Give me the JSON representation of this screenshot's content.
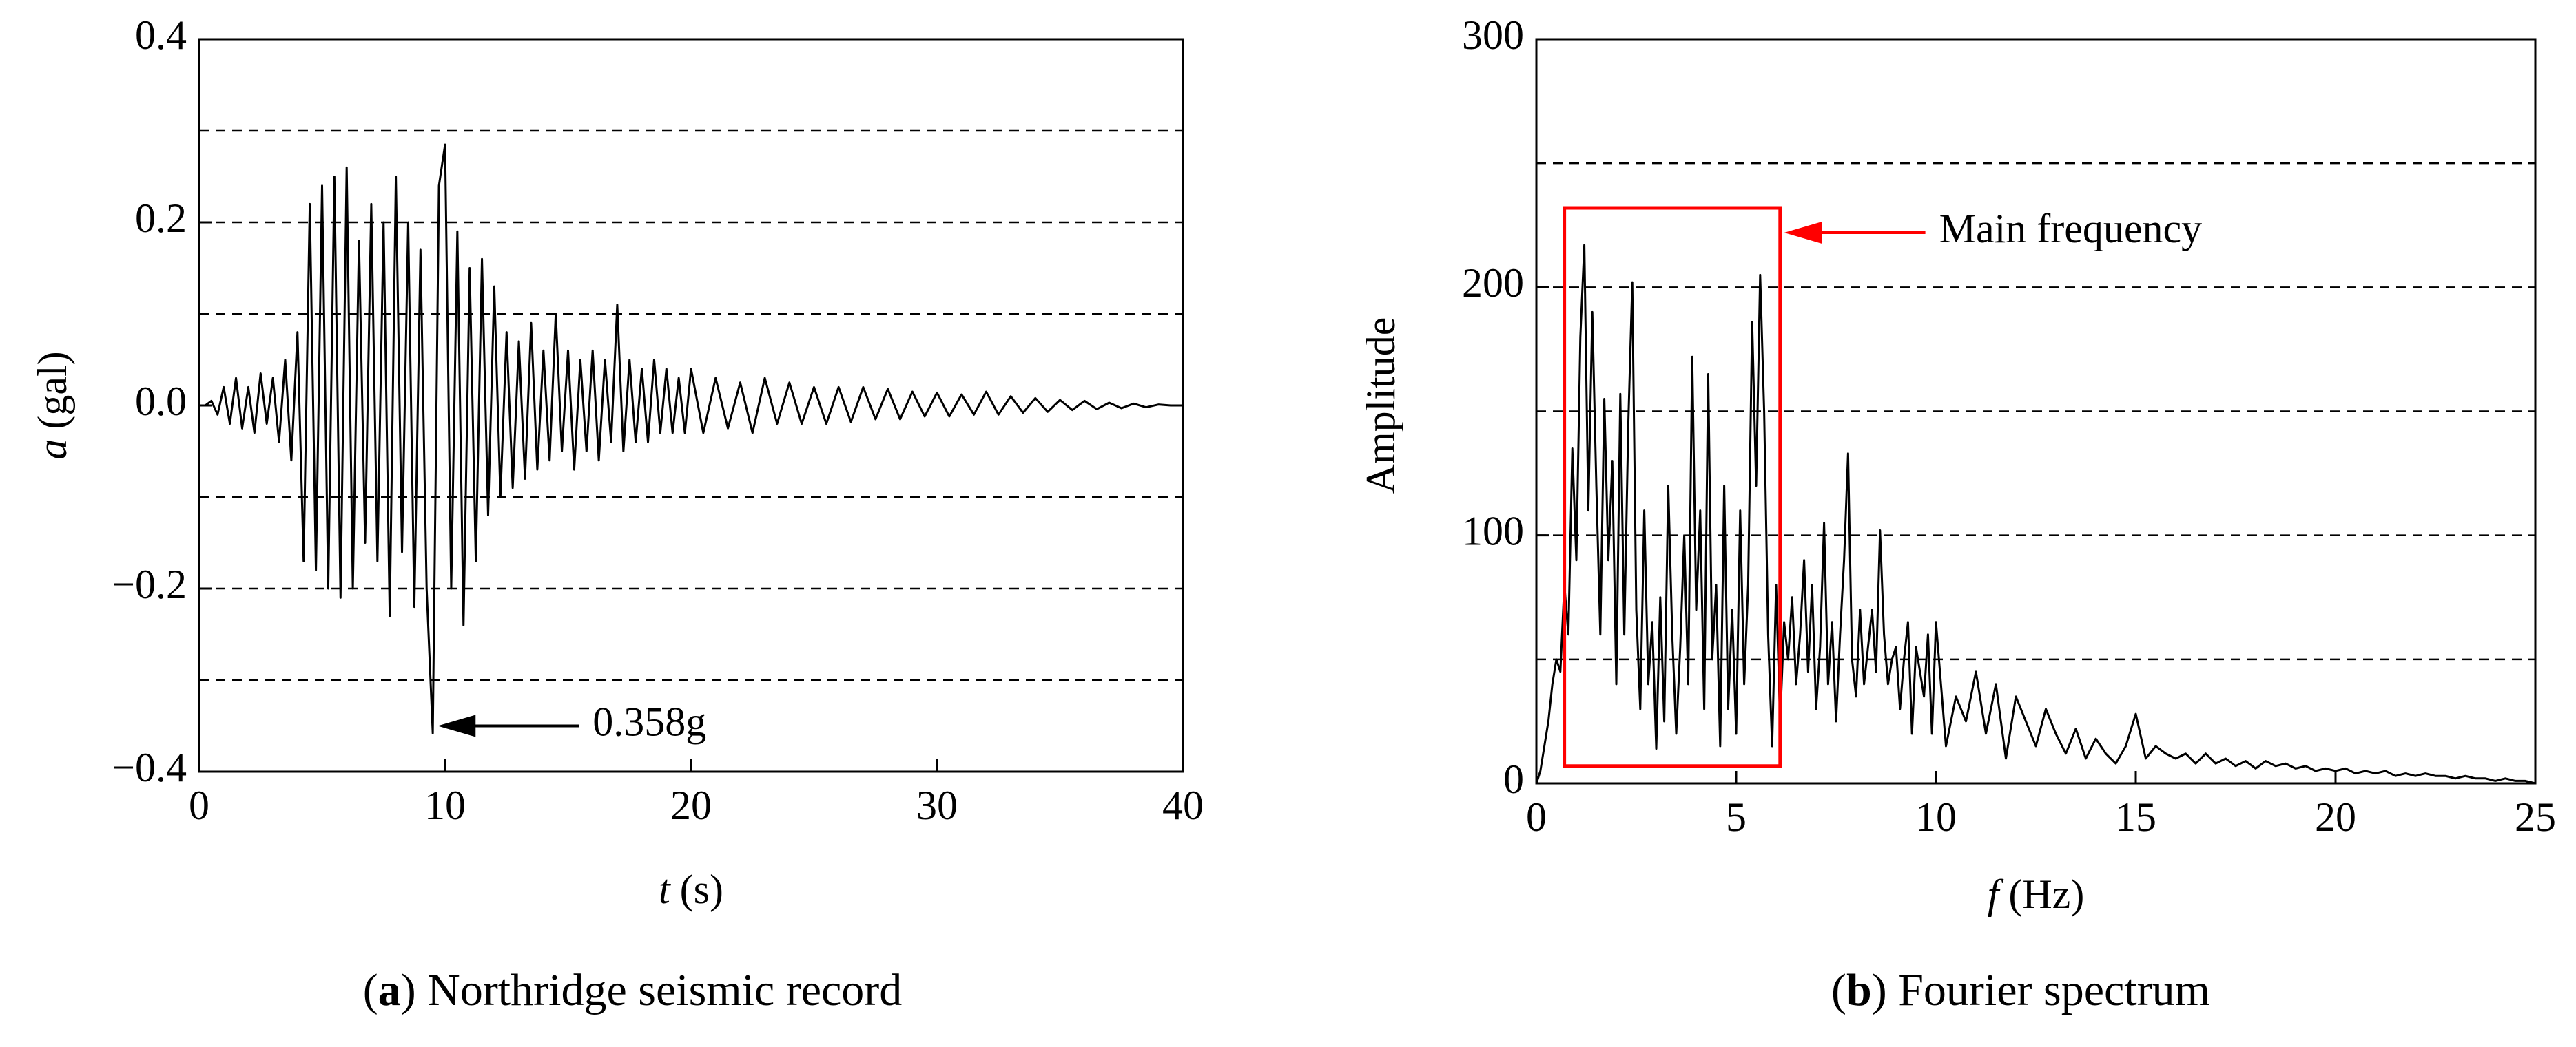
{
  "chart_data": [
    {
      "type": "line",
      "caption": {
        "open": "(",
        "label": "a",
        "rest": ") Northridge seismic record"
      },
      "x_label": {
        "symbol": "t",
        "unit": "(s)"
      },
      "y_label": {
        "symbol": "a",
        "unit": "(gal)"
      },
      "xlim": [
        0,
        40
      ],
      "ylim": [
        -0.4,
        0.4
      ],
      "xticks": [
        0,
        10,
        20,
        30,
        40
      ],
      "yticks": [
        {
          "value": -0.4,
          "label": "−0.4"
        },
        {
          "value": -0.2,
          "label": "−0.2"
        },
        {
          "value": 0,
          "label": "0.0"
        },
        0.2,
        0.4
      ],
      "grid_lines": [
        -0.3,
        -0.2,
        -0.1,
        0.1,
        0.2,
        0.3
      ],
      "color": "#000000",
      "x": [
        0,
        0.25,
        0.5,
        0.75,
        1,
        1.25,
        1.5,
        1.75,
        2,
        2.25,
        2.5,
        2.75,
        3,
        3.25,
        3.5,
        3.75,
        4,
        4.25,
        4.5,
        4.75,
        5,
        5.25,
        5.5,
        5.75,
        6,
        6.25,
        6.5,
        6.75,
        7,
        7.25,
        7.5,
        7.75,
        8,
        8.25,
        8.5,
        8.75,
        9,
        9.25,
        9.5,
        9.75,
        10,
        10.25,
        10.5,
        10.75,
        11,
        11.25,
        11.5,
        11.75,
        12,
        12.25,
        12.5,
        12.75,
        13,
        13.25,
        13.5,
        13.75,
        14,
        14.25,
        14.5,
        14.75,
        15,
        15.25,
        15.5,
        15.75,
        16,
        16.25,
        16.5,
        16.75,
        17,
        17.25,
        17.5,
        17.75,
        18,
        18.25,
        18.5,
        18.75,
        19,
        19.25,
        19.5,
        19.75,
        20,
        20.5,
        21,
        21.5,
        22,
        22.5,
        23,
        23.5,
        24,
        24.5,
        25,
        25.5,
        26,
        26.5,
        27,
        27.5,
        28,
        28.5,
        29,
        29.5,
        30,
        30.5,
        31,
        31.5,
        32,
        32.5,
        33,
        33.5,
        34,
        34.5,
        35,
        35.5,
        36,
        36.5,
        37,
        37.5,
        38,
        38.5,
        39,
        39.5,
        40
      ],
      "values": [
        0,
        0,
        0.005,
        -0.01,
        0.02,
        -0.02,
        0.03,
        -0.025,
        0.02,
        -0.03,
        0.035,
        -0.02,
        0.03,
        -0.04,
        0.05,
        -0.06,
        0.08,
        -0.17,
        0.22,
        -0.18,
        0.24,
        -0.2,
        0.25,
        -0.21,
        0.26,
        -0.2,
        0.18,
        -0.15,
        0.22,
        -0.17,
        0.2,
        -0.23,
        0.25,
        -0.16,
        0.2,
        -0.22,
        0.17,
        -0.2,
        -0.358,
        0.24,
        0.285,
        -0.2,
        0.19,
        -0.24,
        0.15,
        -0.17,
        0.16,
        -0.12,
        0.13,
        -0.1,
        0.08,
        -0.09,
        0.07,
        -0.08,
        0.09,
        -0.07,
        0.06,
        -0.06,
        0.1,
        -0.05,
        0.06,
        -0.07,
        0.05,
        -0.05,
        0.06,
        -0.06,
        0.05,
        -0.04,
        0.11,
        -0.05,
        0.05,
        -0.04,
        0.04,
        -0.04,
        0.05,
        -0.03,
        0.04,
        -0.03,
        0.03,
        -0.03,
        0.04,
        -0.03,
        0.03,
        -0.025,
        0.025,
        -0.03,
        0.03,
        -0.02,
        0.025,
        -0.02,
        0.02,
        -0.02,
        0.02,
        -0.018,
        0.02,
        -0.015,
        0.018,
        -0.015,
        0.015,
        -0.012,
        0.014,
        -0.012,
        0.012,
        -0.01,
        0.015,
        -0.01,
        0.01,
        -0.008,
        0.008,
        -0.007,
        0.006,
        -0.005,
        0.005,
        -0.004,
        0.003,
        -0.003,
        0.002,
        -0.002,
        0.001,
        0,
        0
      ],
      "annotation": {
        "text": "0.358g",
        "x": 9.7,
        "y": -0.35,
        "color": "#000000"
      }
    },
    {
      "type": "line",
      "caption": {
        "open": "(",
        "label": "b",
        "rest": ") Fourier spectrum"
      },
      "x_label": {
        "symbol": "f",
        "unit": "(Hz)"
      },
      "y_label": {
        "text": "Amplitude"
      },
      "xlim": [
        0,
        25
      ],
      "ylim": [
        0,
        300
      ],
      "xticks": [
        0,
        5,
        10,
        15,
        20,
        25
      ],
      "yticks": [
        0,
        100,
        200,
        300
      ],
      "grid_lines": [
        50,
        100,
        150,
        200,
        250
      ],
      "color": "#000000",
      "x": [
        0,
        0.1,
        0.2,
        0.3,
        0.4,
        0.5,
        0.6,
        0.7,
        0.8,
        0.9,
        1,
        1.1,
        1.2,
        1.3,
        1.4,
        1.5,
        1.6,
        1.7,
        1.8,
        1.9,
        2,
        2.1,
        2.2,
        2.3,
        2.4,
        2.5,
        2.6,
        2.7,
        2.8,
        2.9,
        3,
        3.1,
        3.2,
        3.3,
        3.4,
        3.5,
        3.6,
        3.7,
        3.8,
        3.9,
        4,
        4.1,
        4.2,
        4.3,
        4.4,
        4.5,
        4.6,
        4.7,
        4.8,
        4.9,
        5,
        5.1,
        5.2,
        5.3,
        5.4,
        5.5,
        5.6,
        5.7,
        5.8,
        5.9,
        6,
        6.1,
        6.2,
        6.3,
        6.4,
        6.5,
        6.6,
        6.7,
        6.8,
        6.9,
        7,
        7.1,
        7.2,
        7.3,
        7.4,
        7.5,
        7.6,
        7.7,
        7.8,
        7.9,
        8,
        8.1,
        8.2,
        8.3,
        8.4,
        8.5,
        8.6,
        8.7,
        8.8,
        8.9,
        9,
        9.1,
        9.2,
        9.3,
        9.4,
        9.5,
        9.6,
        9.7,
        9.8,
        9.9,
        10,
        10.25,
        10.5,
        10.75,
        11,
        11.25,
        11.5,
        11.75,
        12,
        12.25,
        12.5,
        12.75,
        13,
        13.25,
        13.5,
        13.75,
        14,
        14.25,
        14.5,
        14.75,
        15,
        15.25,
        15.5,
        15.75,
        16,
        16.25,
        16.5,
        16.75,
        17,
        17.25,
        17.5,
        17.75,
        18,
        18.25,
        18.5,
        18.75,
        19,
        19.25,
        19.5,
        19.75,
        20,
        20.25,
        20.5,
        20.75,
        21,
        21.25,
        21.5,
        21.75,
        22,
        22.25,
        22.5,
        22.75,
        23,
        23.25,
        23.5,
        23.75,
        24,
        24.25,
        24.5,
        24.75,
        25
      ],
      "values": [
        0,
        5,
        15,
        25,
        40,
        50,
        45,
        80,
        60,
        135,
        90,
        180,
        217,
        110,
        190,
        120,
        60,
        155,
        90,
        130,
        40,
        157,
        60,
        145,
        202,
        70,
        30,
        110,
        40,
        65,
        14,
        75,
        25,
        120,
        60,
        20,
        55,
        100,
        40,
        172,
        70,
        110,
        30,
        165,
        50,
        80,
        15,
        120,
        30,
        70,
        20,
        110,
        40,
        80,
        186,
        120,
        205,
        150,
        60,
        15,
        80,
        25,
        65,
        50,
        75,
        40,
        60,
        90,
        45,
        80,
        30,
        55,
        105,
        40,
        65,
        25,
        60,
        90,
        133,
        50,
        35,
        70,
        40,
        55,
        70,
        45,
        102,
        60,
        40,
        50,
        55,
        30,
        50,
        65,
        20,
        55,
        45,
        35,
        60,
        20,
        65,
        15,
        35,
        25,
        45,
        20,
        40,
        10,
        35,
        25,
        15,
        30,
        20,
        12,
        22,
        10,
        18,
        12,
        8,
        15,
        28,
        10,
        15,
        12,
        10,
        12,
        8,
        12,
        8,
        10,
        7,
        9,
        6,
        9,
        7,
        8,
        6,
        7,
        5,
        6,
        5,
        6,
        4,
        5,
        4,
        5,
        3,
        4,
        3,
        4,
        3,
        3,
        2,
        3,
        2,
        2,
        1,
        2,
        1,
        1,
        0
      ],
      "highlight": {
        "x": [
          0.7,
          6.1
        ],
        "y": [
          7,
          232
        ],
        "color": "#ff0000"
      },
      "annotation": {
        "text": "Main frequency",
        "x": 6.2,
        "y": 222,
        "color": "#ff0000"
      }
    }
  ]
}
